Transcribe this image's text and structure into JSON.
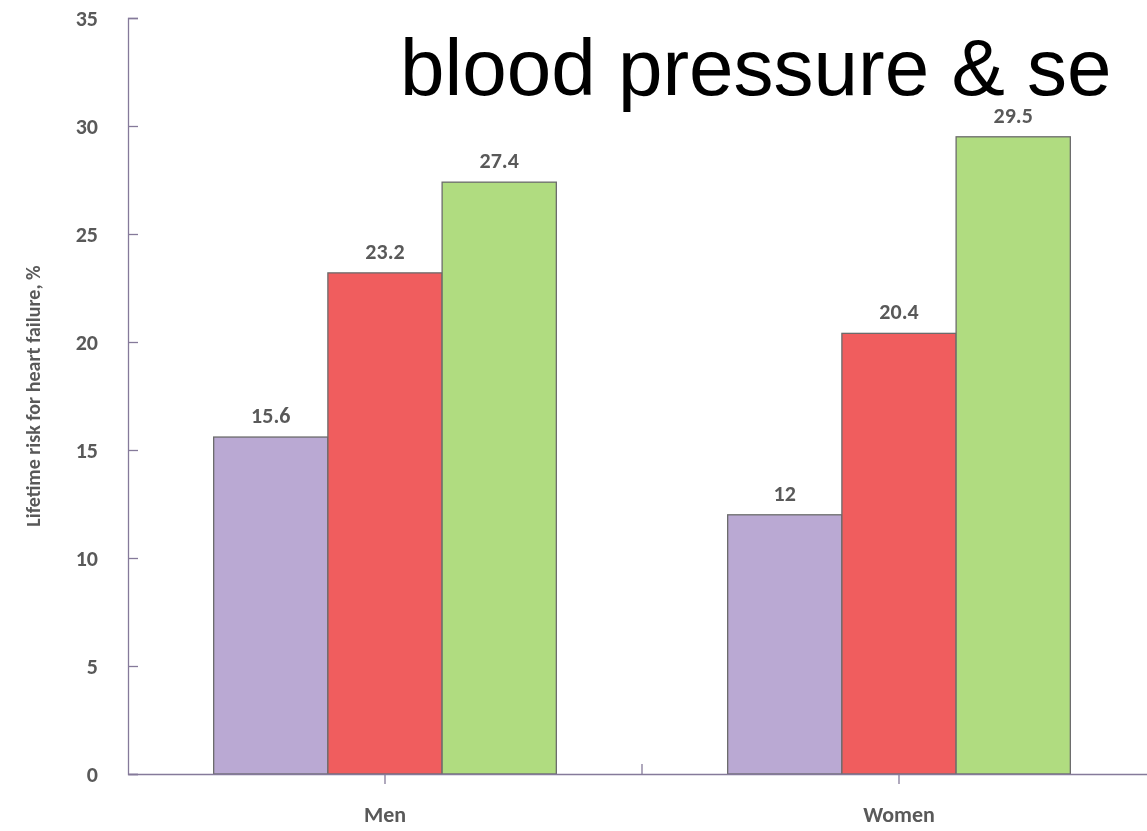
{
  "chart_data": {
    "type": "bar",
    "title": "blood pressure & se",
    "ylabel": "Lifetime risk for heart failure, %",
    "categories": [
      "Men",
      "Women"
    ],
    "series": [
      {
        "color": "#baa9d3",
        "values": [
          15.6,
          12
        ]
      },
      {
        "color": "#f05d5e",
        "values": [
          23.2,
          20.4
        ]
      },
      {
        "color": "#b0dc80",
        "values": [
          27.4,
          29.5
        ]
      }
    ],
    "ylim": [
      0,
      35
    ],
    "yticks": [
      0,
      5,
      10,
      15,
      20,
      25,
      30,
      35
    ],
    "data_labels": true
  }
}
